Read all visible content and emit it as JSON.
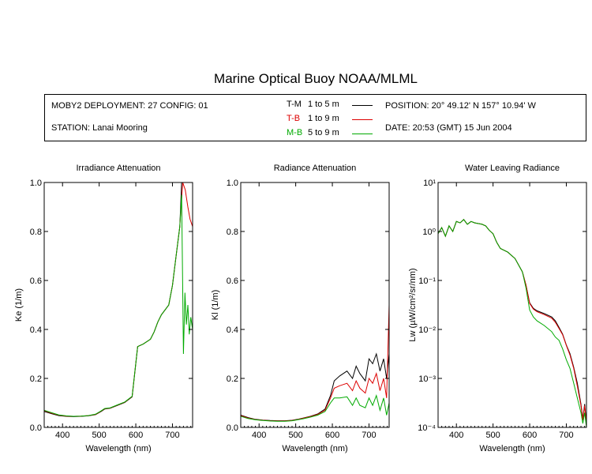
{
  "title": "Marine Optical Buoy NOAA/MLML",
  "info": {
    "deployment": "MOBY2 DEPLOYMENT: 27 CONFIG: 01",
    "station": "STATION: Lanai Mooring",
    "position": "POSITION: 20° 49.12' N   157° 10.94' W",
    "date": "DATE: 20:53 (GMT) 15 Jun 2004"
  },
  "legend": [
    {
      "code": "T-M",
      "range": "1 to 5  m",
      "color": "#000000"
    },
    {
      "code": "T-B",
      "range": "1 to 9  m",
      "color": "#dd0000"
    },
    {
      "code": "M-B",
      "range": "5 to 9  m",
      "color": "#00aa00"
    }
  ],
  "chart_data": [
    {
      "type": "line",
      "title": "Irradiance Attenuation",
      "xlabel": "Wavelength (nm)",
      "ylabel": "Ke  (1/m)",
      "xlim": [
        350,
        755
      ],
      "ylim": [
        0,
        1.0
      ],
      "yscale": "linear",
      "xticks": [
        400,
        500,
        600,
        700
      ],
      "yticks": [
        "0.0",
        "0.2",
        "0.4",
        "0.6",
        "0.8",
        "1.0"
      ],
      "yticks_values": [
        0,
        0.2,
        0.4,
        0.6,
        0.8,
        1.0
      ],
      "series": [
        {
          "name": "T-M",
          "color": "#000000",
          "x": [
            350,
            370,
            390,
            410,
            430,
            450,
            470,
            490,
            505,
            515,
            530,
            550,
            570,
            590,
            600,
            605,
            620,
            640,
            650,
            660,
            670,
            690,
            700,
            710,
            720,
            725
          ],
          "y": [
            0.065,
            0.056,
            0.048,
            0.045,
            0.044,
            0.045,
            0.047,
            0.052,
            0.065,
            0.075,
            0.078,
            0.09,
            0.102,
            0.125,
            0.26,
            0.33,
            0.34,
            0.36,
            0.39,
            0.43,
            0.46,
            0.5,
            0.58,
            0.7,
            0.82,
            1.0
          ]
        },
        {
          "name": "T-B",
          "color": "#dd0000",
          "x": [
            350,
            370,
            390,
            410,
            430,
            450,
            470,
            490,
            505,
            515,
            530,
            550,
            570,
            590,
            600,
            605,
            620,
            640,
            650,
            660,
            670,
            690,
            700,
            710,
            720,
            728,
            735,
            742,
            748,
            755
          ],
          "y": [
            0.068,
            0.058,
            0.05,
            0.046,
            0.045,
            0.046,
            0.048,
            0.053,
            0.066,
            0.076,
            0.079,
            0.091,
            0.103,
            0.126,
            0.26,
            0.33,
            0.34,
            0.36,
            0.39,
            0.43,
            0.46,
            0.5,
            0.58,
            0.7,
            0.82,
            1.0,
            0.97,
            0.9,
            0.85,
            0.82
          ]
        },
        {
          "name": "M-B",
          "color": "#00aa00",
          "x": [
            350,
            370,
            390,
            410,
            430,
            450,
            470,
            490,
            505,
            515,
            530,
            550,
            570,
            590,
            600,
            605,
            620,
            640,
            650,
            660,
            670,
            690,
            700,
            710,
            720,
            725,
            730,
            734,
            738,
            742,
            746,
            750,
            755
          ],
          "y": [
            0.07,
            0.06,
            0.051,
            0.047,
            0.045,
            0.046,
            0.048,
            0.054,
            0.067,
            0.077,
            0.08,
            0.092,
            0.104,
            0.127,
            0.26,
            0.33,
            0.34,
            0.36,
            0.39,
            0.43,
            0.46,
            0.5,
            0.58,
            0.7,
            0.82,
            0.95,
            0.3,
            0.55,
            0.42,
            0.5,
            0.38,
            0.45,
            0.4
          ]
        }
      ]
    },
    {
      "type": "line",
      "title": "Radiance Attenuation",
      "xlabel": "Wavelength (nm)",
      "ylabel": "Kl  (1/m)",
      "xlim": [
        350,
        755
      ],
      "ylim": [
        0,
        1.0
      ],
      "yscale": "linear",
      "xticks": [
        400,
        500,
        600,
        700
      ],
      "yticks": [
        "0.0",
        "0.2",
        "0.4",
        "0.6",
        "0.8",
        "1.0"
      ],
      "yticks_values": [
        0,
        0.2,
        0.4,
        0.6,
        0.8,
        1.0
      ],
      "series": [
        {
          "name": "T-M",
          "color": "#000000",
          "x": [
            350,
            370,
            390,
            410,
            430,
            450,
            470,
            490,
            505,
            520,
            540,
            560,
            580,
            595,
            605,
            620,
            640,
            655,
            665,
            675,
            690,
            700,
            710,
            720,
            730,
            740,
            748,
            755
          ],
          "y": [
            0.05,
            0.04,
            0.033,
            0.03,
            0.028,
            0.027,
            0.027,
            0.029,
            0.033,
            0.038,
            0.045,
            0.055,
            0.075,
            0.13,
            0.19,
            0.21,
            0.23,
            0.2,
            0.25,
            0.22,
            0.19,
            0.28,
            0.26,
            0.3,
            0.23,
            0.28,
            0.2,
            0.3
          ]
        },
        {
          "name": "T-B",
          "color": "#dd0000",
          "x": [
            350,
            370,
            390,
            410,
            430,
            450,
            470,
            490,
            505,
            520,
            540,
            560,
            580,
            595,
            605,
            620,
            640,
            655,
            665,
            675,
            690,
            700,
            710,
            720,
            730,
            740,
            748,
            755
          ],
          "y": [
            0.048,
            0.038,
            0.032,
            0.029,
            0.027,
            0.026,
            0.026,
            0.028,
            0.032,
            0.037,
            0.044,
            0.053,
            0.07,
            0.12,
            0.16,
            0.17,
            0.18,
            0.15,
            0.19,
            0.16,
            0.14,
            0.2,
            0.18,
            0.22,
            0.15,
            0.2,
            0.12,
            0.5
          ]
        },
        {
          "name": "M-B",
          "color": "#00aa00",
          "x": [
            350,
            370,
            390,
            410,
            430,
            450,
            470,
            490,
            505,
            520,
            540,
            560,
            580,
            595,
            605,
            620,
            640,
            655,
            665,
            675,
            690,
            700,
            710,
            720,
            730,
            740,
            748,
            755
          ],
          "y": [
            0.045,
            0.036,
            0.031,
            0.028,
            0.026,
            0.025,
            0.025,
            0.027,
            0.031,
            0.035,
            0.042,
            0.05,
            0.065,
            0.1,
            0.12,
            0.12,
            0.125,
            0.09,
            0.12,
            0.09,
            0.08,
            0.12,
            0.09,
            0.13,
            0.07,
            0.12,
            0.05,
            0.1
          ]
        }
      ]
    },
    {
      "type": "line",
      "title": "Water Leaving Radiance",
      "xlabel": "Wavelength (nm)",
      "ylabel": "Lw  (µW/cm²/sr/nm)",
      "xlim": [
        350,
        755
      ],
      "ylim": [
        0.0001,
        10
      ],
      "yscale": "log",
      "xticks": [
        400,
        500,
        600,
        700
      ],
      "yticks": [
        "10⁻⁴",
        "10⁻³",
        "10⁻²",
        "10⁻¹",
        "10⁰",
        "10¹"
      ],
      "yticks_values": [
        0.0001,
        0.001,
        0.01,
        0.1,
        1,
        10
      ],
      "series": [
        {
          "name": "T-M",
          "color": "#000000",
          "x": [
            350,
            360,
            370,
            380,
            390,
            400,
            410,
            420,
            430,
            440,
            450,
            460,
            470,
            480,
            490,
            500,
            510,
            520,
            540,
            560,
            580,
            590,
            600,
            610,
            620,
            640,
            660,
            670,
            680,
            690,
            700,
            710,
            720,
            730,
            740,
            745,
            750,
            755
          ],
          "y": [
            0.9,
            1.2,
            0.8,
            1.3,
            1.0,
            1.6,
            1.5,
            1.75,
            1.4,
            1.6,
            1.5,
            1.45,
            1.4,
            1.3,
            1.05,
            0.9,
            0.6,
            0.45,
            0.38,
            0.28,
            0.15,
            0.08,
            0.035,
            0.027,
            0.024,
            0.021,
            0.018,
            0.015,
            0.011,
            0.008,
            0.0048,
            0.0032,
            0.0017,
            0.0008,
            0.0003,
            0.00015,
            0.0003,
            0.00012
          ]
        },
        {
          "name": "T-B",
          "color": "#dd0000",
          "x": [
            350,
            360,
            370,
            380,
            390,
            400,
            410,
            420,
            430,
            440,
            450,
            460,
            470,
            480,
            490,
            500,
            510,
            520,
            540,
            560,
            580,
            590,
            600,
            610,
            620,
            640,
            660,
            670,
            680,
            690,
            700,
            710,
            720,
            730,
            740,
            745,
            750,
            755
          ],
          "y": [
            0.9,
            1.2,
            0.8,
            1.3,
            1.0,
            1.6,
            1.5,
            1.75,
            1.4,
            1.6,
            1.5,
            1.45,
            1.4,
            1.3,
            1.05,
            0.9,
            0.6,
            0.45,
            0.38,
            0.28,
            0.15,
            0.08,
            0.034,
            0.026,
            0.023,
            0.02,
            0.017,
            0.014,
            0.0105,
            0.0078,
            0.0047,
            0.003,
            0.0016,
            0.0007,
            0.00028,
            0.00014,
            0.00028,
            0.00011
          ]
        },
        {
          "name": "M-B",
          "color": "#00aa00",
          "x": [
            350,
            360,
            370,
            380,
            390,
            400,
            410,
            420,
            430,
            440,
            450,
            460,
            470,
            480,
            490,
            500,
            510,
            520,
            540,
            560,
            580,
            590,
            600,
            610,
            620,
            640,
            660,
            670,
            680,
            690,
            700,
            710,
            720,
            730,
            740,
            745,
            750,
            755
          ],
          "y": [
            0.9,
            1.2,
            0.8,
            1.3,
            1.0,
            1.6,
            1.5,
            1.75,
            1.4,
            1.6,
            1.5,
            1.45,
            1.4,
            1.3,
            1.05,
            0.9,
            0.6,
            0.45,
            0.38,
            0.28,
            0.15,
            0.07,
            0.025,
            0.018,
            0.015,
            0.012,
            0.009,
            0.007,
            0.006,
            0.004,
            0.0024,
            0.0016,
            0.0008,
            0.0004,
            0.0002,
            0.00012,
            0.0002,
            0.0001
          ]
        }
      ]
    }
  ]
}
